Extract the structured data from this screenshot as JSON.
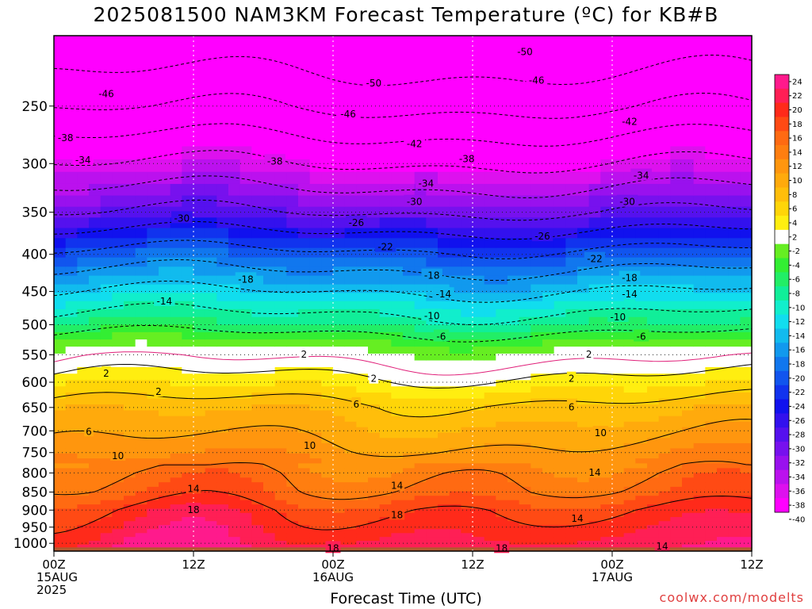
{
  "page": {
    "title": "2025081500 NAM3KM Forecast Temperature (ºC) for KB#B",
    "x_title": "Forecast Time (UTC)",
    "credit": "coolwx.com/modelts"
  },
  "chart_data": {
    "type": "heatmap",
    "title": "2025081500 NAM3KM Forecast Temperature (ºC) for KB#B",
    "xlabel": "Forecast Time (UTC)",
    "ylabel": "",
    "x_ticks": [
      {
        "hour": 0,
        "lines": [
          "00Z",
          "15AUG",
          "2025"
        ]
      },
      {
        "hour": 12,
        "lines": [
          "12Z"
        ]
      },
      {
        "hour": 24,
        "lines": [
          "00Z",
          "16AUG"
        ]
      },
      {
        "hour": 36,
        "lines": [
          "12Z"
        ]
      },
      {
        "hour": 48,
        "lines": [
          "00Z",
          "17AUG"
        ]
      },
      {
        "hour": 60,
        "lines": [
          "12Z"
        ]
      }
    ],
    "xlim": [
      0,
      60
    ],
    "ylim_hpa": [
      1025,
      200
    ],
    "y_scale": "log-pressure",
    "y_ticks": [
      250,
      300,
      350,
      400,
      450,
      500,
      550,
      600,
      650,
      700,
      750,
      800,
      850,
      900,
      950,
      1000
    ],
    "grid": true,
    "colorbar": {
      "position": "right",
      "levels": [
        24,
        22,
        20,
        18,
        16,
        14,
        12,
        10,
        8,
        6,
        4,
        2,
        -2,
        -4,
        -6,
        -8,
        -10,
        -12,
        -14,
        -16,
        -18,
        -20,
        -22,
        -24,
        -26,
        -28,
        -30,
        -32,
        -34,
        -36,
        -38,
        -40
      ],
      "colors": [
        "#ff1a8c",
        "#ff1f55",
        "#ff2a1a",
        "#ff4a14",
        "#ff6a12",
        "#ff7e10",
        "#ff960e",
        "#ffaa0c",
        "#ffbe0a",
        "#ffd508",
        "#ffee10",
        "#ffffff",
        "#66ee22",
        "#33ee33",
        "#22ee66",
        "#11ee99",
        "#11eecc",
        "#11ddee",
        "#11bbee",
        "#1199ee",
        "#1177ee",
        "#1155ee",
        "#1133ee",
        "#1111ee",
        "#3311ee",
        "#5511ee",
        "#7711ee",
        "#9911ee",
        "#bb11ee",
        "#dd11ee",
        "#ff00ff"
      ],
      "zero_line_color": "#e0207a"
    },
    "ground_color": "#b35a30",
    "contour_labels": [
      {
        "hour": 40.5,
        "hpa": 210,
        "value": "-50"
      },
      {
        "hour": 27.5,
        "hpa": 232,
        "value": "-50"
      },
      {
        "hour": 4.5,
        "hpa": 240,
        "value": "-46"
      },
      {
        "hour": 41.5,
        "hpa": 230,
        "value": "-46"
      },
      {
        "hour": 25.3,
        "hpa": 256,
        "value": "-46"
      },
      {
        "hour": 49.5,
        "hpa": 262,
        "value": "-42"
      },
      {
        "hour": 31.0,
        "hpa": 281,
        "value": "-42"
      },
      {
        "hour": 1.0,
        "hpa": 276,
        "value": "-38"
      },
      {
        "hour": 19.0,
        "hpa": 297,
        "value": "-38"
      },
      {
        "hour": 35.5,
        "hpa": 295,
        "value": "-38"
      },
      {
        "hour": 2.5,
        "hpa": 296,
        "value": "-34"
      },
      {
        "hour": 32.0,
        "hpa": 319,
        "value": "-34"
      },
      {
        "hour": 50.5,
        "hpa": 311,
        "value": "-34"
      },
      {
        "hour": 31.0,
        "hpa": 338,
        "value": "-30"
      },
      {
        "hour": 11.0,
        "hpa": 356,
        "value": "-30"
      },
      {
        "hour": 49.3,
        "hpa": 338,
        "value": "-30"
      },
      {
        "hour": 26.0,
        "hpa": 361,
        "value": "-26"
      },
      {
        "hour": 42.0,
        "hpa": 377,
        "value": "-26"
      },
      {
        "hour": 28.5,
        "hpa": 390,
        "value": "-22"
      },
      {
        "hour": 46.5,
        "hpa": 405,
        "value": "-22"
      },
      {
        "hour": 16.5,
        "hpa": 432,
        "value": "-18"
      },
      {
        "hour": 32.5,
        "hpa": 427,
        "value": "-18"
      },
      {
        "hour": 49.5,
        "hpa": 430,
        "value": "-18"
      },
      {
        "hour": 9.5,
        "hpa": 463,
        "value": "-14"
      },
      {
        "hour": 33.5,
        "hpa": 453,
        "value": "-14"
      },
      {
        "hour": 49.5,
        "hpa": 453,
        "value": "-14"
      },
      {
        "hour": 32.5,
        "hpa": 485,
        "value": "-10"
      },
      {
        "hour": 48.5,
        "hpa": 487,
        "value": "-10"
      },
      {
        "hour": 33.3,
        "hpa": 518,
        "value": "-6"
      },
      {
        "hour": 50.5,
        "hpa": 518,
        "value": "-6"
      },
      {
        "hour": 21.5,
        "hpa": 548,
        "value": "2"
      },
      {
        "hour": 46.0,
        "hpa": 548,
        "value": "2"
      },
      {
        "hour": 4.5,
        "hpa": 582,
        "value": "2"
      },
      {
        "hour": 27.5,
        "hpa": 592,
        "value": "2"
      },
      {
        "hour": 44.5,
        "hpa": 592,
        "value": "2"
      },
      {
        "hour": 9.0,
        "hpa": 617,
        "value": "2"
      },
      {
        "hour": 26.0,
        "hpa": 642,
        "value": "6"
      },
      {
        "hour": 44.5,
        "hpa": 648,
        "value": "6"
      },
      {
        "hour": 3.0,
        "hpa": 700,
        "value": "6"
      },
      {
        "hour": 22.0,
        "hpa": 732,
        "value": "10"
      },
      {
        "hour": 47.0,
        "hpa": 703,
        "value": "10"
      },
      {
        "hour": 5.5,
        "hpa": 756,
        "value": "10"
      },
      {
        "hour": 46.5,
        "hpa": 797,
        "value": "14"
      },
      {
        "hour": 12.0,
        "hpa": 839,
        "value": "14"
      },
      {
        "hour": 29.5,
        "hpa": 831,
        "value": "14"
      },
      {
        "hour": 45.0,
        "hpa": 922,
        "value": "14"
      },
      {
        "hour": 12.0,
        "hpa": 897,
        "value": "18"
      },
      {
        "hour": 29.5,
        "hpa": 912,
        "value": "18"
      },
      {
        "hour": 24.0,
        "hpa": 1013,
        "value": "18"
      },
      {
        "hour": 38.5,
        "hpa": 1013,
        "value": "18"
      },
      {
        "hour": 52.3,
        "hpa": 1007,
        "value": "14"
      }
    ]
  }
}
